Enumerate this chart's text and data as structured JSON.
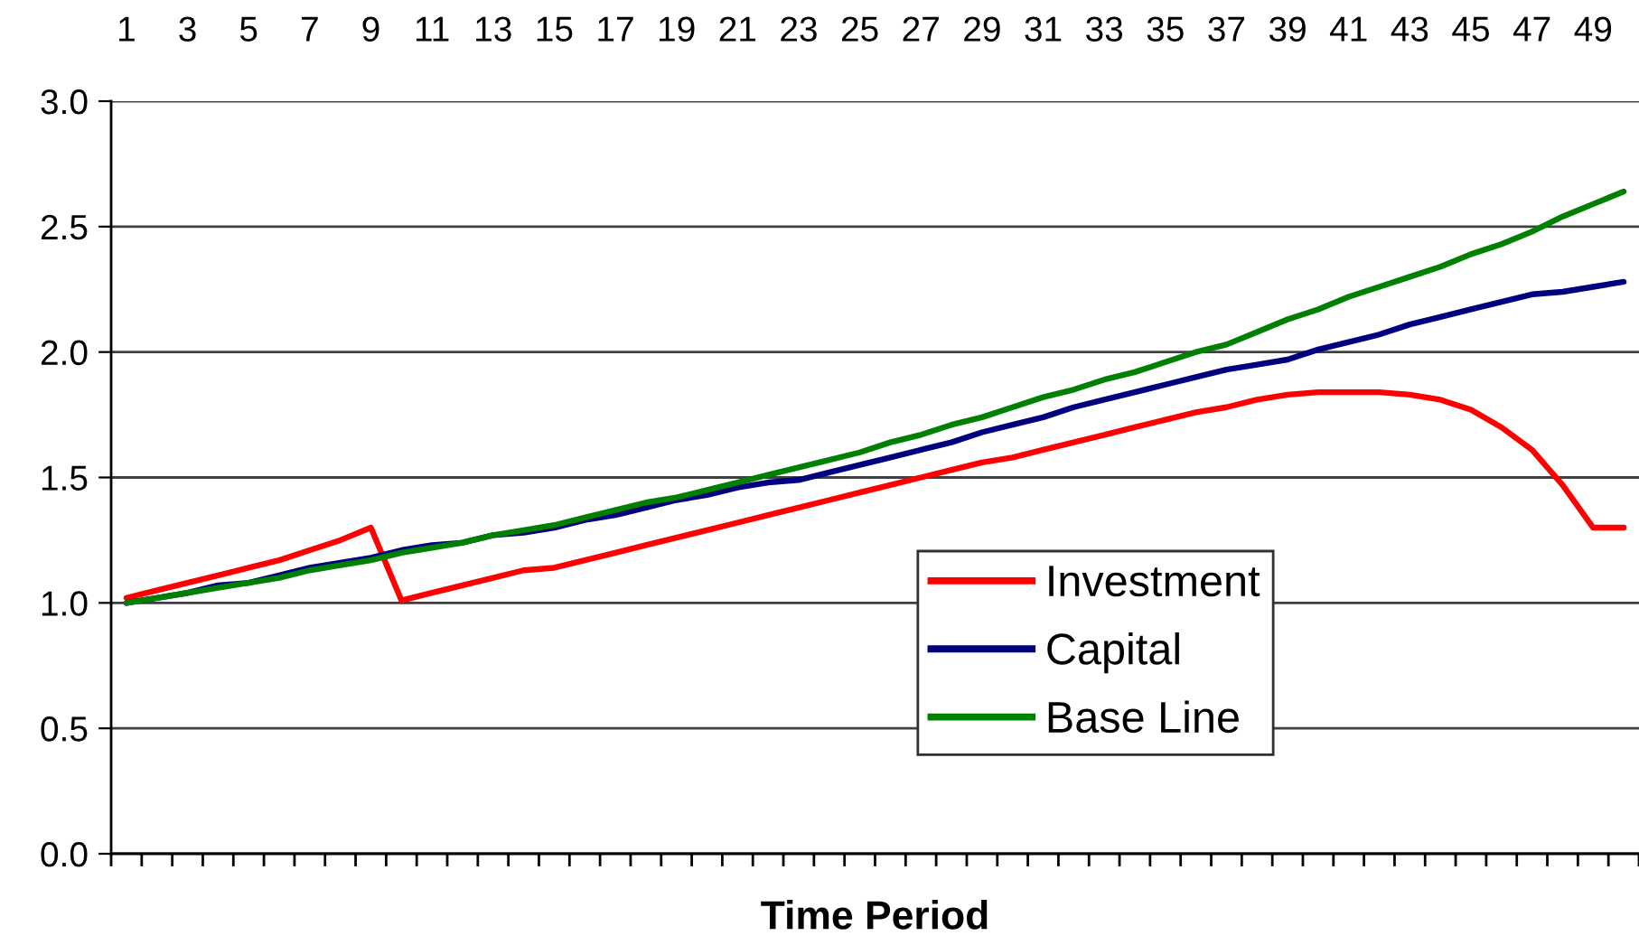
{
  "chart_data": {
    "type": "line",
    "xlabel": "Time Period",
    "categories": [
      "1",
      null,
      "3",
      null,
      "5",
      null,
      "7",
      null,
      "9",
      null,
      "11",
      null,
      "13",
      null,
      "15",
      null,
      "17",
      null,
      "19",
      null,
      "21",
      null,
      "23",
      null,
      "25",
      null,
      "27",
      null,
      "29",
      null,
      "31",
      null,
      "33",
      null,
      "35",
      null,
      "37",
      null,
      "39",
      null,
      "41",
      null,
      "43",
      null,
      "45",
      null,
      "47",
      null,
      "49",
      null
    ],
    "series": [
      {
        "name": "Investment",
        "color": "#ff0000",
        "values": [
          1.02,
          1.05,
          1.08,
          1.11,
          1.14,
          1.17,
          1.21,
          1.25,
          1.3,
          1.01,
          1.04,
          1.07,
          1.1,
          1.13,
          1.14,
          1.17,
          1.2,
          1.23,
          1.26,
          1.29,
          1.32,
          1.35,
          1.38,
          1.41,
          1.44,
          1.47,
          1.5,
          1.53,
          1.56,
          1.58,
          1.61,
          1.64,
          1.67,
          1.7,
          1.73,
          1.76,
          1.78,
          1.81,
          1.83,
          1.84,
          1.84,
          1.84,
          1.83,
          1.81,
          1.77,
          1.7,
          1.61,
          1.47,
          1.3,
          1.3
        ]
      },
      {
        "name": "Capital",
        "color": "#000080",
        "values": [
          1.0,
          1.02,
          1.04,
          1.07,
          1.08,
          1.11,
          1.14,
          1.16,
          1.18,
          1.21,
          1.23,
          1.24,
          1.27,
          1.28,
          1.3,
          1.33,
          1.35,
          1.38,
          1.41,
          1.43,
          1.46,
          1.48,
          1.49,
          1.52,
          1.55,
          1.58,
          1.61,
          1.64,
          1.68,
          1.71,
          1.74,
          1.78,
          1.81,
          1.84,
          1.87,
          1.9,
          1.93,
          1.95,
          1.97,
          2.01,
          2.04,
          2.07,
          2.11,
          2.14,
          2.17,
          2.2,
          2.23,
          2.24,
          2.26,
          2.28
        ]
      },
      {
        "name": "Base Line",
        "color": "#008000",
        "values": [
          1.0,
          1.02,
          1.04,
          1.06,
          1.08,
          1.1,
          1.13,
          1.15,
          1.17,
          1.2,
          1.22,
          1.24,
          1.27,
          1.29,
          1.31,
          1.34,
          1.37,
          1.4,
          1.42,
          1.45,
          1.48,
          1.51,
          1.54,
          1.57,
          1.6,
          1.64,
          1.67,
          1.71,
          1.74,
          1.78,
          1.82,
          1.85,
          1.89,
          1.92,
          1.96,
          2.0,
          2.03,
          2.08,
          2.13,
          2.17,
          2.22,
          2.26,
          2.3,
          2.34,
          2.39,
          2.43,
          2.48,
          2.54,
          2.59,
          2.64
        ]
      }
    ],
    "ylim": [
      0,
      3.0
    ],
    "yticks": [
      {
        "value": 0,
        "label": "0.0"
      },
      {
        "value": 0.5,
        "label": "0.5"
      },
      {
        "value": 1.0,
        "label": "1.0"
      },
      {
        "value": 1.5,
        "label": "1.5"
      },
      {
        "value": 2.0,
        "label": "2.0"
      },
      {
        "value": 2.5,
        "label": "2.5"
      },
      {
        "value": 3.0,
        "label": "3.0"
      }
    ],
    "grid": "y",
    "legend": "lower right",
    "marker": "none",
    "line_style": "solid"
  }
}
